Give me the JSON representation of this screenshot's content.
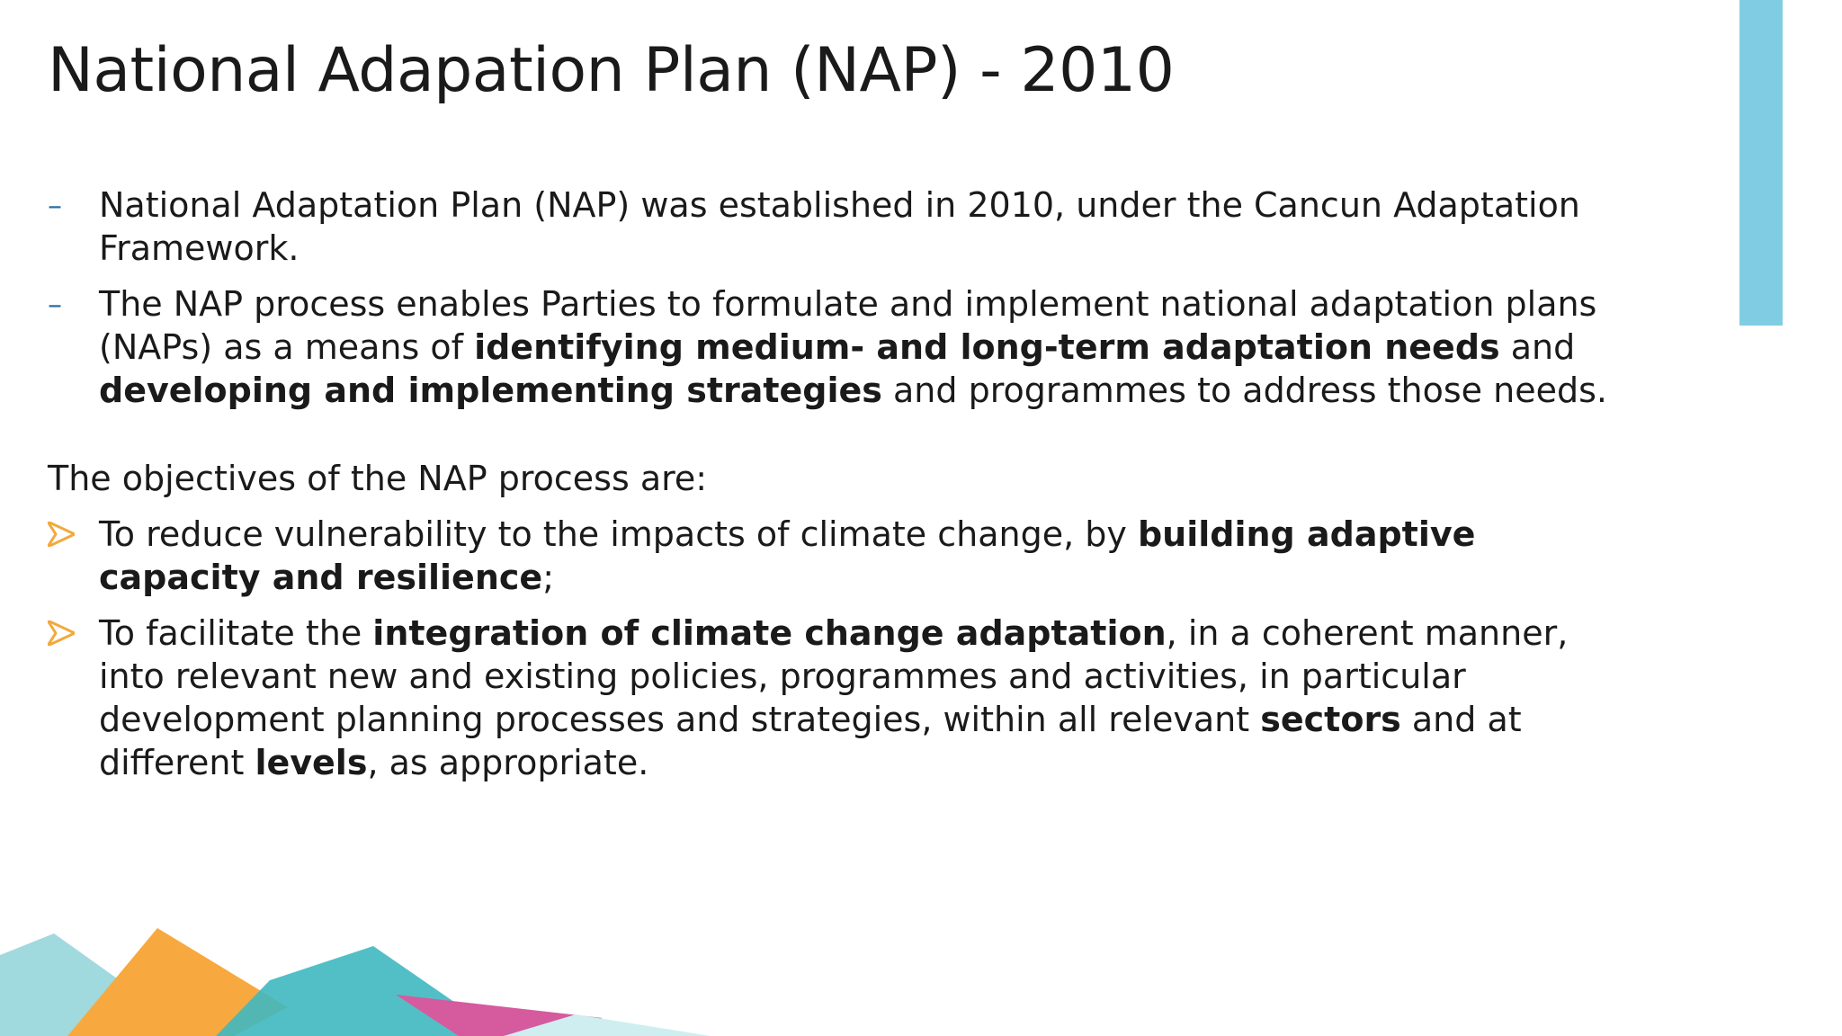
{
  "slide": {
    "title": "National Adapation Plan (NAP) - 2010",
    "bullets": [
      {
        "marker": "dash",
        "parts": [
          {
            "text": "National Adaptation Plan (NAP) was established in 2010, under the Cancun Adaptation Framework.",
            "bold": false
          }
        ]
      },
      {
        "marker": "dash",
        "parts": [
          {
            "text": "The NAP process enables Parties to formulate and implement national adaptation plans (NAPs) as a means of ",
            "bold": false
          },
          {
            "text": "identifying medium- and long-term adaptation needs",
            "bold": true
          },
          {
            "text": " and ",
            "bold": false
          },
          {
            "text": "developing and implementing strategies",
            "bold": true
          },
          {
            "text": " and programmes to address those needs.",
            "bold": false
          }
        ]
      }
    ],
    "objectives_intro": "The objectives of the NAP process are:",
    "objectives": [
      {
        "marker": "arrow",
        "parts": [
          {
            "text": "To reduce vulnerability to the impacts of climate change, by ",
            "bold": false
          },
          {
            "text": "building adaptive capacity and resilience",
            "bold": true
          },
          {
            "text": ";",
            "bold": false
          }
        ]
      },
      {
        "marker": "arrow",
        "parts": [
          {
            "text": "To facilitate the ",
            "bold": false
          },
          {
            "text": "integration of climate change adaptation",
            "bold": true
          },
          {
            "text": ", in a coherent manner, into relevant new and existing policies, programmes and activities, in particular development planning processes and strategies, within all relevant ",
            "bold": false
          },
          {
            "text": "sectors",
            "bold": true
          },
          {
            "text": " and at different ",
            "bold": false
          },
          {
            "text": "levels",
            "bold": true
          },
          {
            "text": ", as appropriate.",
            "bold": false
          }
        ]
      }
    ]
  },
  "colors": {
    "accent_bar": "#80cde3",
    "dash_marker": "#2e6fa3",
    "arrow_marker": "#f2a93b",
    "deco_teal_light": "#8fd3d8",
    "deco_orange": "#f7a93f",
    "deco_teal": "#3fb8c0",
    "deco_pink": "#d65a9e"
  },
  "icons": {
    "dash_marker": "dash-bullet-icon",
    "arrow_marker": "arrow-bullet-icon"
  }
}
